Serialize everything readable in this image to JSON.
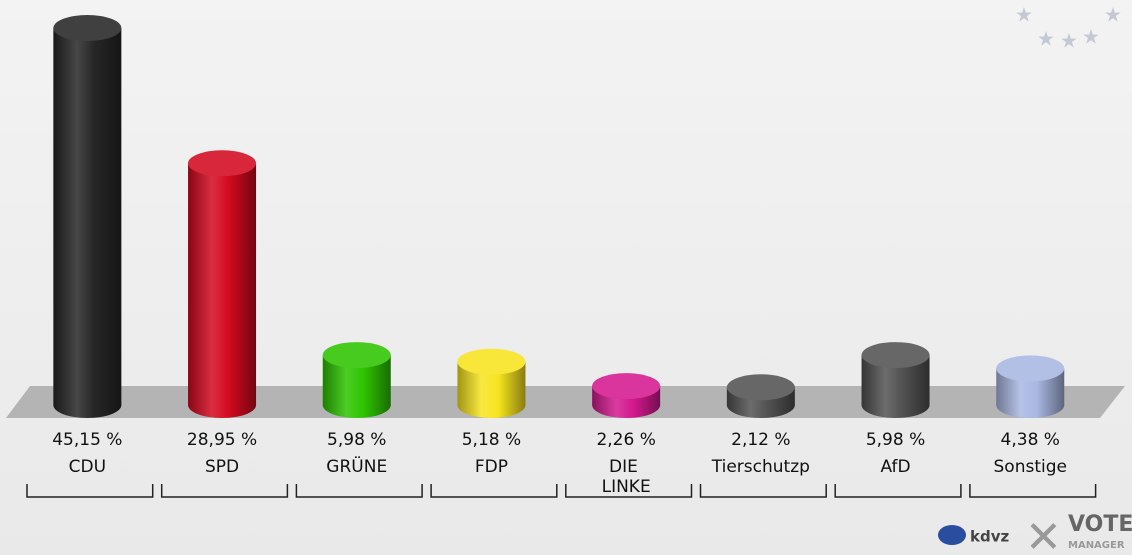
{
  "chart_data": {
    "type": "bar",
    "categories": [
      "CDU",
      "SPD",
      "GRÜNE",
      "FDP",
      "DIE LINKE",
      "Tierschutzp",
      "AfD",
      "Sonstige"
    ],
    "values": [
      45.15,
      28.95,
      5.98,
      5.18,
      2.26,
      2.12,
      5.98,
      4.38
    ],
    "value_labels": [
      "45,15 %",
      "28,95 %",
      "5,98 %",
      "5,18 %",
      "2,26 %",
      "2,12 %",
      "5,98 %",
      "4,38 %"
    ],
    "colors": [
      "#262626",
      "#d3091f",
      "#2ec400",
      "#f7e41e",
      "#d4198f",
      "#525252",
      "#525252",
      "#a9b7e2"
    ]
  },
  "logo": {
    "left": "kdvz",
    "right": "VOTE",
    "sub": "MANAGER"
  }
}
